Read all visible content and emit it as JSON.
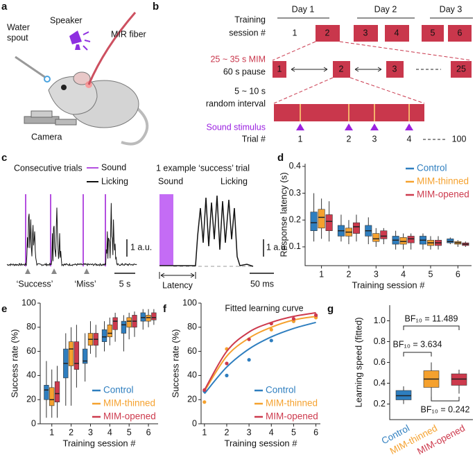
{
  "panel_labels": [
    "a",
    "b",
    "c",
    "d",
    "e",
    "f",
    "g"
  ],
  "a": {
    "water_spout": [
      "Water",
      "spout"
    ],
    "speaker": "Speaker",
    "fiber": "MIR fiber",
    "camera": "Camera"
  },
  "b": {
    "training_label": [
      "Training",
      "session #"
    ],
    "days": [
      "Day 1",
      "Day 2",
      "Day 3"
    ],
    "sessions": [
      "1",
      "2",
      "3",
      "4",
      "5",
      "6"
    ],
    "mim_label": "25 ~ 35 s MIM",
    "pause_label": "60 s pause",
    "mim_blocks": [
      "1",
      "2",
      "3",
      "25"
    ],
    "interval_label": [
      "5 ~ 10 s",
      "random interval"
    ],
    "sound_label": "Sound stimulus",
    "trial_label": "Trial #",
    "trials": [
      "1",
      "2",
      "3",
      "4"
    ],
    "trial_end": "100"
  },
  "c": {
    "left_title": "Consecutive trials",
    "legend": [
      "Sound",
      "Licking"
    ],
    "left_scale_y": "1 a.u.",
    "left_scale_x": "5 s",
    "outcomes": [
      "‘Success’",
      "‘Miss’"
    ],
    "right_title": "1 example ‘success’ trial",
    "right_labels": [
      "Sound",
      "Licking"
    ],
    "right_scale_y": "1 a.u.",
    "right_scale_x": "50 ms",
    "latency": "Latency"
  },
  "chart_data": [
    {
      "type": "box",
      "ylabel": "Response latency (s)",
      "xlabel": "Training session #",
      "x": [
        1,
        2,
        3,
        4,
        5,
        6
      ],
      "xlim": [
        0.4,
        6.5
      ],
      "ylim": [
        0.03,
        0.41
      ],
      "yticks": [
        0.1,
        0.2,
        0.3,
        0.4
      ],
      "legend": "upper right",
      "series": [
        {
          "name": "Control",
          "color": "#2e7ebf",
          "values": [
            [
              0.12,
              0.16,
              0.19,
              0.23,
              0.3
            ],
            [
              0.12,
              0.14,
              0.16,
              0.18,
              0.22
            ],
            [
              0.11,
              0.14,
              0.16,
              0.18,
              0.21
            ],
            [
              0.09,
              0.11,
              0.125,
              0.14,
              0.16
            ],
            [
              0.09,
              0.11,
              0.125,
              0.14,
              0.15
            ],
            [
              0.11,
              0.115,
              0.12,
              0.13,
              0.135
            ]
          ]
        },
        {
          "name": "MIM-thinned",
          "color": "#f5a12e",
          "values": [
            [
              0.13,
              0.17,
              0.21,
              0.24,
              0.28
            ],
            [
              0.11,
              0.14,
              0.155,
              0.17,
              0.2
            ],
            [
              0.1,
              0.12,
              0.13,
              0.15,
              0.17
            ],
            [
              0.09,
              0.11,
              0.12,
              0.135,
              0.15
            ],
            [
              0.09,
              0.105,
              0.115,
              0.125,
              0.14
            ],
            [
              0.1,
              0.11,
              0.115,
              0.12,
              0.125
            ]
          ]
        },
        {
          "name": "MIM-opened",
          "color": "#cd3a4d",
          "values": [
            [
              0.12,
              0.16,
              0.195,
              0.22,
              0.27
            ],
            [
              0.12,
              0.15,
              0.175,
              0.19,
              0.22
            ],
            [
              0.11,
              0.13,
              0.14,
              0.16,
              0.17
            ],
            [
              0.09,
              0.115,
              0.13,
              0.14,
              0.15
            ],
            [
              0.09,
              0.105,
              0.115,
              0.125,
              0.14
            ],
            [
              0.1,
              0.105,
              0.11,
              0.115,
              0.12
            ]
          ]
        }
      ]
    },
    {
      "type": "box",
      "ylabel": "Success rate (%)",
      "xlabel": "Training session #",
      "x": [
        1,
        2,
        3,
        4,
        5,
        6
      ],
      "xlim": [
        0.4,
        6.5
      ],
      "ylim": [
        0,
        100
      ],
      "yticks": [
        0,
        20,
        40,
        60,
        80,
        100
      ],
      "legend": "lower right",
      "series": [
        {
          "name": "Control",
          "color": "#2e7ebf",
          "values": [
            [
              5,
              20,
              28,
              32,
              52
            ],
            [
              15,
              38,
              50,
              62,
              75
            ],
            [
              35,
              50,
              52,
              62,
              75
            ],
            [
              60,
              68,
              72,
              78,
              85
            ],
            [
              60,
              75,
              82,
              85,
              90
            ],
            [
              78,
              85,
              88,
              92,
              95
            ]
          ]
        },
        {
          "name": "MIM-thinned",
          "color": "#f5a12e",
          "values": [
            [
              5,
              15,
              20,
              30,
              45
            ],
            [
              15,
              48,
              62,
              68,
              80
            ],
            [
              58,
              65,
              70,
              75,
              85
            ],
            [
              65,
              72,
              75,
              82,
              88
            ],
            [
              70,
              80,
              85,
              88,
              92
            ],
            [
              80,
              85,
              88,
              90,
              95
            ]
          ]
        },
        {
          "name": "MIM-opened",
          "color": "#cd3a4d",
          "values": [
            [
              5,
              18,
              25,
              35,
              48
            ],
            [
              30,
              45,
              50,
              68,
              82
            ],
            [
              55,
              65,
              70,
              75,
              82
            ],
            [
              68,
              78,
              85,
              88,
              92
            ],
            [
              72,
              80,
              85,
              90,
              93
            ],
            [
              82,
              86,
              88,
              92,
              95
            ]
          ]
        }
      ]
    },
    {
      "type": "line",
      "title": "Fitted learning curve",
      "ylabel": "Success rate (%)",
      "xlabel": "Training session #",
      "x": [
        1,
        2,
        3,
        4,
        5,
        6
      ],
      "xlim": [
        0.85,
        6.2
      ],
      "ylim": [
        0,
        100
      ],
      "yticks": [
        0,
        20,
        40,
        60,
        80,
        100
      ],
      "legend": "lower right",
      "series": [
        {
          "name": "Control",
          "color": "#2e7ebf",
          "values": [
            27,
            40,
            53,
            69,
            85,
            89
          ],
          "fit": [
            25,
            47,
            62,
            72,
            79,
            84
          ]
        },
        {
          "name": "MIM-thinned",
          "color": "#f5a12e",
          "values": [
            18,
            62,
            70,
            78,
            85,
            88
          ],
          "fit": [
            27,
            56,
            71,
            80,
            86,
            89
          ]
        },
        {
          "name": "MIM-opened",
          "color": "#cd3a4d",
          "values": [
            28,
            50,
            70,
            83,
            87,
            90
          ],
          "fit": [
            28,
            60,
            76,
            84,
            89,
            92
          ]
        }
      ]
    },
    {
      "type": "box_category",
      "ylabel": "Learning speed (fitted)",
      "categories": [
        "Control",
        "MIM-thinned",
        "MIM-opened"
      ],
      "colors": [
        "#2e7ebf",
        "#f5a12e",
        "#cd3a4d"
      ],
      "values": [
        [
          0.2,
          0.24,
          0.28,
          0.33,
          0.37
        ],
        [
          0.26,
          0.36,
          0.44,
          0.52,
          0.6
        ],
        [
          0.3,
          0.38,
          0.44,
          0.49,
          0.53
        ]
      ],
      "ylim": [
        0.05,
        1.15
      ],
      "yticks": [
        0.2,
        0.4,
        0.6,
        0.8,
        {
          "value": 1,
          "label": "1.0"
        }
      ],
      "annotations": [
        "BF₁₀ = 11.489",
        "BF₁₀ = 3.634",
        "BF₁₀ = 0.242"
      ]
    }
  ]
}
